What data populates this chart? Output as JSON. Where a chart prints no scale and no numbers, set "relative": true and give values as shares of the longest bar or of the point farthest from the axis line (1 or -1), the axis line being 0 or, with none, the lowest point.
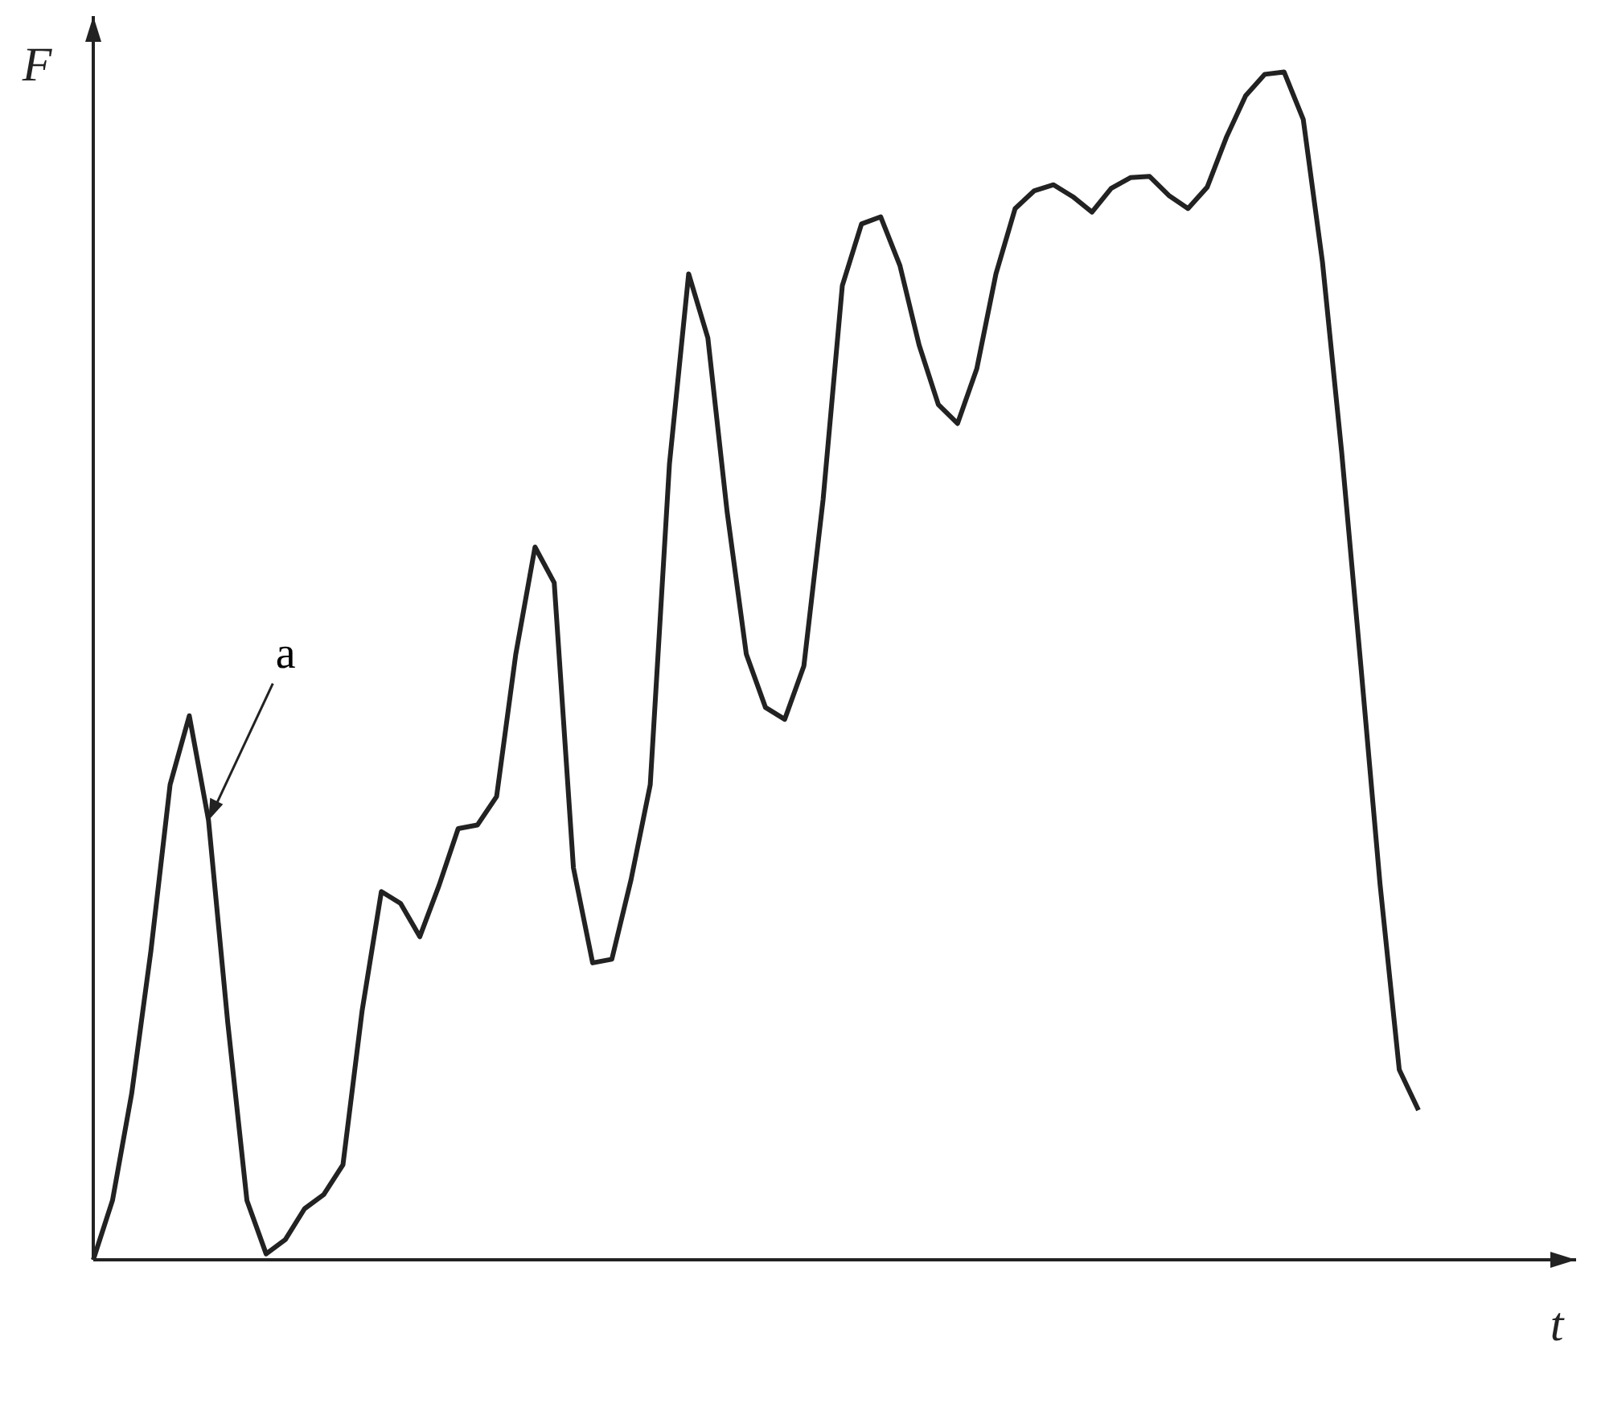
{
  "chart_data": {
    "type": "line",
    "xlabel": "t",
    "ylabel": "F",
    "relative": true,
    "color": "#222222",
    "marker": "none",
    "annotations": [
      "a"
    ],
    "categories": [
      null,
      null,
      null,
      null,
      null,
      null,
      null,
      null,
      null,
      null,
      null,
      null,
      null,
      null,
      null,
      null,
      null,
      null,
      null,
      null,
      null,
      null,
      null,
      null,
      null,
      null,
      null,
      null,
      null,
      null,
      null,
      null,
      null,
      null,
      null,
      null,
      null,
      null,
      null,
      null,
      null,
      null,
      null,
      null,
      null,
      null,
      null,
      null,
      null,
      null,
      null,
      null,
      null,
      null,
      null,
      null,
      null,
      null,
      null,
      null,
      null,
      null,
      null,
      null,
      null,
      null,
      null,
      null,
      null,
      null
    ],
    "values": [
      0,
      0.05,
      0.14,
      0.26,
      0.4,
      0.458,
      0.37,
      0.2,
      0.05,
      0.005,
      0.017,
      0.043,
      0.055,
      0.08,
      0.21,
      0.31,
      0.3,
      0.272,
      0.315,
      0.363,
      0.366,
      0.39,
      0.51,
      0.6,
      0.57,
      0.33,
      0.25,
      0.253,
      0.32,
      0.4,
      0.67,
      0.83,
      0.776,
      0.63,
      0.51,
      0.465,
      0.455,
      0.5,
      0.64,
      0.82,
      0.872,
      0.878,
      0.837,
      0.77,
      0.72,
      0.704,
      0.75,
      0.83,
      0.885,
      0.9,
      0.905,
      0.895,
      0.882,
      0.902,
      0.911,
      0.912,
      0.896,
      0.885,
      0.903,
      0.945,
      0.98,
      0.998,
      1,
      0.96,
      0.84,
      0.68,
      0.5,
      0.316,
      0.16,
      0.126
    ]
  }
}
